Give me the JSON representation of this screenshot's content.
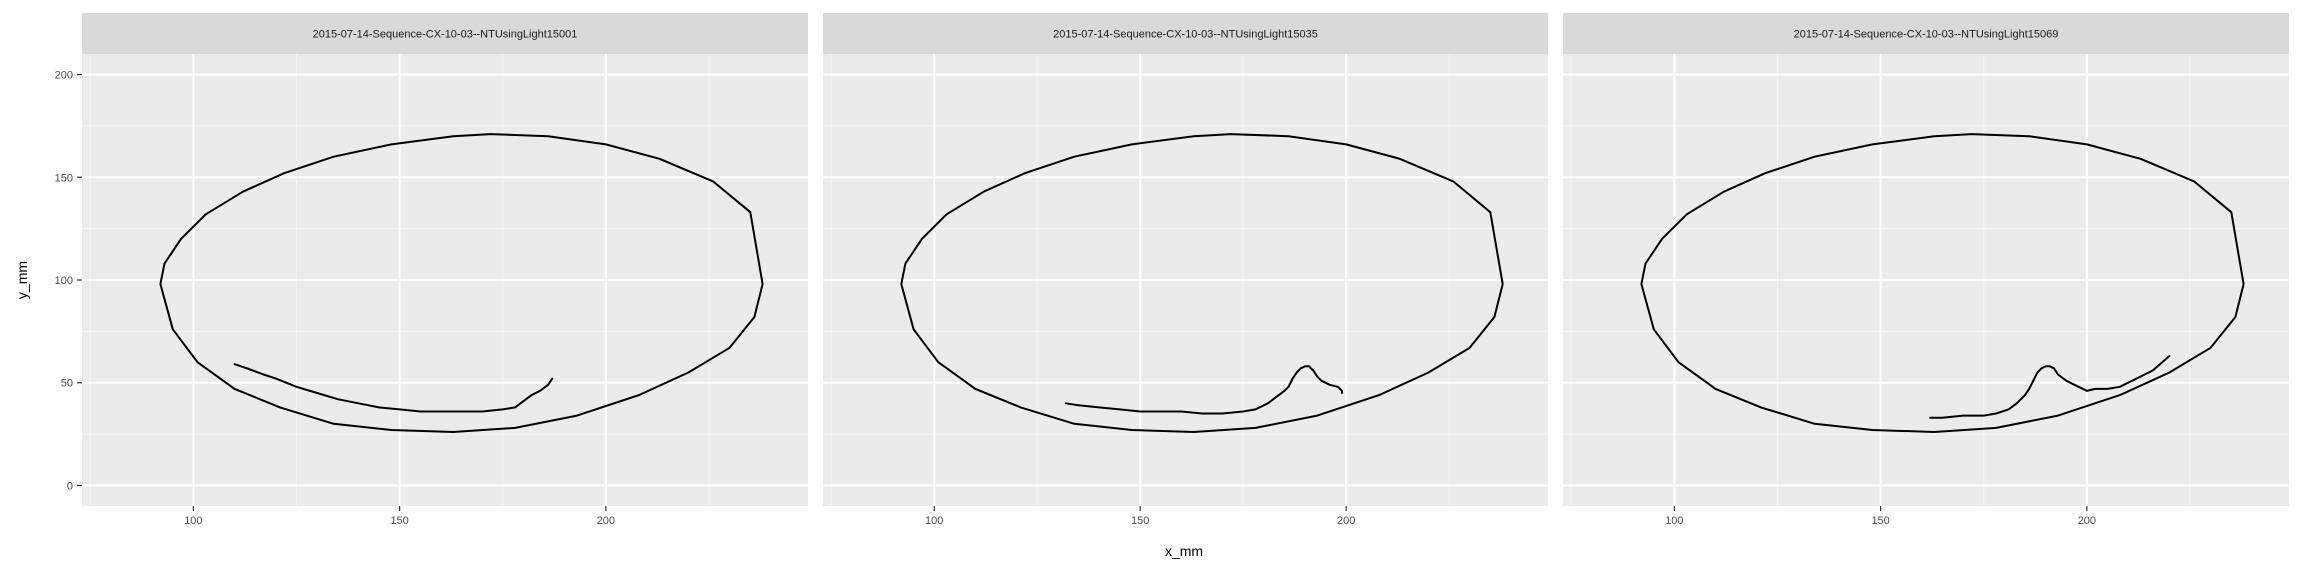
{
  "chart_data": {
    "type": "line",
    "xlabel": "x_mm",
    "ylabel": "y_mm",
    "xlim": [
      73,
      249
    ],
    "ylim": [
      -10,
      210
    ],
    "x_ticks": [
      100,
      150,
      200
    ],
    "y_ticks": [
      0,
      50,
      100,
      150,
      200
    ],
    "grid": true,
    "facets": [
      {
        "title": "2015-07-14-Sequence-CX-10-03--NTUsingLight15001",
        "series": [
          {
            "x": [
              92,
              93,
              97,
              103,
              112,
              122,
              134,
              148,
              163,
              172,
              186,
              200,
              213,
              226,
              235,
              238,
              236,
              230,
              220,
              208,
              193,
              178,
              163,
              148,
              134,
              121,
              110,
              101,
              95,
              92
            ],
            "y": [
              98,
              108,
              120,
              132,
              143,
              152,
              160,
              166,
              170,
              171,
              170,
              166,
              159,
              148,
              133,
              98,
              82,
              67,
              55,
              44,
              34,
              28,
              26,
              27,
              30,
              38,
              47,
              60,
              76,
              98
            ]
          },
          {
            "x": [
              110,
              113,
              117,
              120,
              125,
              130,
              135,
              140,
              145,
              150,
              155,
              160,
              165,
              170,
              175,
              178,
              180,
              182,
              184,
              186,
              187
            ],
            "y": [
              59,
              57,
              54,
              52,
              48,
              45,
              42,
              40,
              38,
              37,
              36,
              36,
              36,
              36,
              37,
              38,
              41,
              44,
              46,
              49,
              52
            ]
          }
        ]
      },
      {
        "title": "2015-07-14-Sequence-CX-10-03--NTUsingLight15035",
        "series": [
          {
            "x": [
              92,
              93,
              97,
              103,
              112,
              122,
              134,
              148,
              163,
              172,
              186,
              200,
              213,
              226,
              235,
              238,
              236,
              230,
              220,
              208,
              193,
              178,
              163,
              148,
              134,
              121,
              110,
              101,
              95,
              92
            ],
            "y": [
              98,
              108,
              120,
              132,
              143,
              152,
              160,
              166,
              170,
              171,
              170,
              166,
              159,
              148,
              133,
              98,
              82,
              67,
              55,
              44,
              34,
              28,
              26,
              27,
              30,
              38,
              47,
              60,
              76,
              98
            ]
          },
          {
            "x": [
              132,
              135,
              140,
              145,
              150,
              155,
              160,
              165,
              170,
              175,
              178,
              181,
              183,
              185,
              186,
              187,
              188,
              189,
              190,
              191,
              192,
              193,
              194,
              196,
              198,
              199,
              199
            ],
            "y": [
              40,
              39,
              38,
              37,
              36,
              36,
              36,
              35,
              35,
              36,
              37,
              40,
              43,
              46,
              48,
              52,
              55,
              57,
              58,
              58,
              56,
              53,
              51,
              49,
              48,
              46,
              45
            ]
          }
        ]
      },
      {
        "title": "2015-07-14-Sequence-CX-10-03--NTUsingLight15069",
        "series": [
          {
            "x": [
              92,
              93,
              97,
              103,
              112,
              122,
              134,
              148,
              163,
              172,
              186,
              200,
              213,
              226,
              235,
              238,
              236,
              230,
              220,
              208,
              193,
              178,
              163,
              148,
              134,
              121,
              110,
              101,
              95,
              92
            ],
            "y": [
              98,
              108,
              120,
              132,
              143,
              152,
              160,
              166,
              170,
              171,
              170,
              166,
              159,
              148,
              133,
              98,
              82,
              67,
              55,
              44,
              34,
              28,
              26,
              27,
              30,
              38,
              47,
              60,
              76,
              98
            ]
          },
          {
            "x": [
              162,
              165,
              170,
              175,
              178,
              181,
              183,
              185,
              186,
              187,
              188,
              189,
              190,
              191,
              192,
              193,
              195,
              197,
              199,
              200,
              202,
              205,
              208,
              212,
              216,
              220
            ],
            "y": [
              33,
              33,
              34,
              34,
              35,
              37,
              40,
              44,
              47,
              51,
              55,
              57,
              58,
              58,
              57,
              54,
              51,
              49,
              47,
              46,
              47,
              47,
              48,
              52,
              56,
              63
            ]
          }
        ]
      }
    ]
  }
}
